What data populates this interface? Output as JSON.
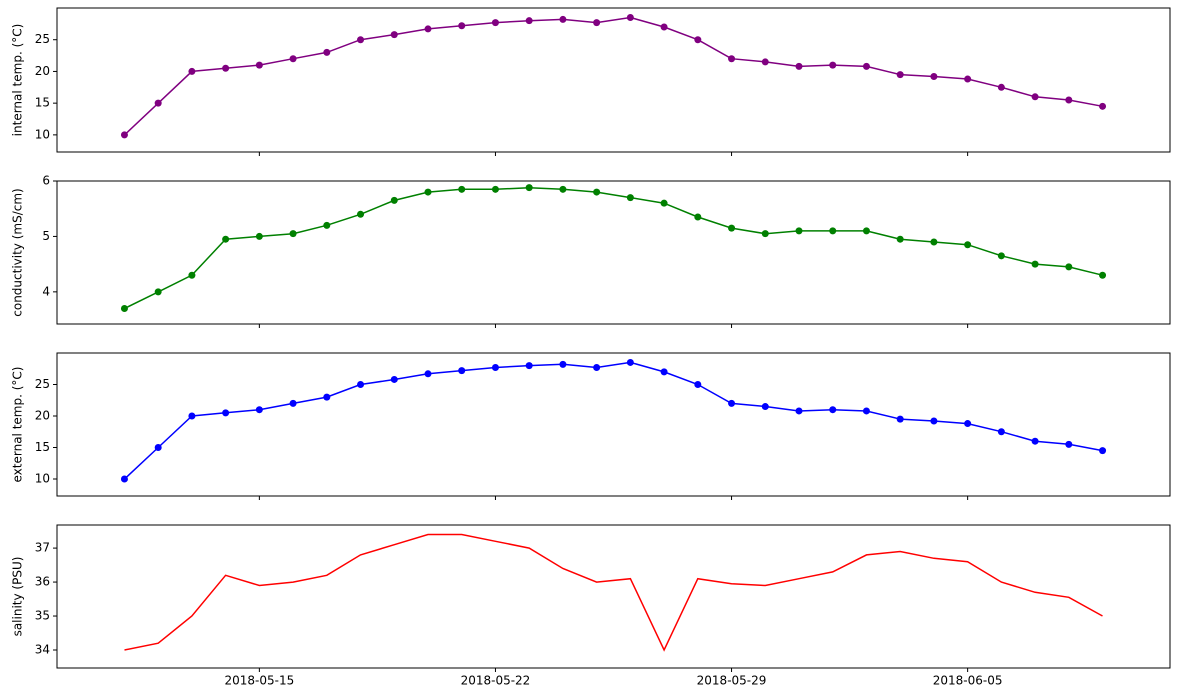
{
  "chart_data": [
    {
      "type": "line",
      "ylabel": "internal temp. (°C)",
      "color": "#800080",
      "markers": true,
      "x": [
        "2018-05-11",
        "2018-05-12",
        "2018-05-13",
        "2018-05-14",
        "2018-05-15",
        "2018-05-16",
        "2018-05-17",
        "2018-05-18",
        "2018-05-19",
        "2018-05-20",
        "2018-05-21",
        "2018-05-22",
        "2018-05-23",
        "2018-05-24",
        "2018-05-25",
        "2018-05-26",
        "2018-05-27",
        "2018-05-28",
        "2018-05-29",
        "2018-05-30",
        "2018-05-31",
        "2018-06-01",
        "2018-06-02",
        "2018-06-03",
        "2018-06-04",
        "2018-06-05",
        "2018-06-06",
        "2018-06-07",
        "2018-06-08",
        "2018-06-09"
      ],
      "values": [
        10,
        15,
        20,
        20.5,
        21,
        22,
        23,
        25,
        25.8,
        26.7,
        27.2,
        27.7,
        28,
        28.2,
        27.7,
        28.5,
        27,
        25,
        22,
        21.5,
        20.8,
        21,
        20.8,
        19.5,
        19.2,
        18.8,
        17.5,
        16,
        15.5,
        14.5
      ],
      "xlim": [
        "2018-05-09",
        "2018-06-11"
      ],
      "ylim": [
        7.3,
        30
      ],
      "yticks": [
        10,
        15,
        20,
        25
      ]
    },
    {
      "type": "line",
      "ylabel": "conductivity (mS/cm)",
      "color": "#008000",
      "markers": true,
      "x": [
        "2018-05-11",
        "2018-05-12",
        "2018-05-13",
        "2018-05-14",
        "2018-05-15",
        "2018-05-16",
        "2018-05-17",
        "2018-05-18",
        "2018-05-19",
        "2018-05-20",
        "2018-05-21",
        "2018-05-22",
        "2018-05-23",
        "2018-05-24",
        "2018-05-25",
        "2018-05-26",
        "2018-05-27",
        "2018-05-28",
        "2018-05-29",
        "2018-05-30",
        "2018-05-31",
        "2018-06-01",
        "2018-06-02",
        "2018-06-03",
        "2018-06-04",
        "2018-06-05",
        "2018-06-06",
        "2018-06-07",
        "2018-06-08",
        "2018-06-09"
      ],
      "values": [
        3.7,
        4.0,
        4.3,
        4.95,
        5.0,
        5.05,
        5.2,
        5.4,
        5.65,
        5.8,
        5.85,
        5.85,
        5.88,
        5.85,
        5.8,
        5.7,
        5.6,
        5.35,
        5.15,
        5.05,
        5.1,
        5.1,
        5.1,
        4.95,
        4.9,
        4.85,
        4.65,
        4.5,
        4.45,
        4.3
      ],
      "xlim": [
        "2018-05-09",
        "2018-06-11"
      ],
      "ylim": [
        3.42,
        6
      ],
      "yticks": [
        4,
        5,
        6
      ]
    },
    {
      "type": "line",
      "ylabel": "external temp. (°C)",
      "color": "#0000ff",
      "markers": true,
      "x": [
        "2018-05-11",
        "2018-05-12",
        "2018-05-13",
        "2018-05-14",
        "2018-05-15",
        "2018-05-16",
        "2018-05-17",
        "2018-05-18",
        "2018-05-19",
        "2018-05-20",
        "2018-05-21",
        "2018-05-22",
        "2018-05-23",
        "2018-05-24",
        "2018-05-25",
        "2018-05-26",
        "2018-05-27",
        "2018-05-28",
        "2018-05-29",
        "2018-05-30",
        "2018-05-31",
        "2018-06-01",
        "2018-06-02",
        "2018-06-03",
        "2018-06-04",
        "2018-06-05",
        "2018-06-06",
        "2018-06-07",
        "2018-06-08",
        "2018-06-09"
      ],
      "values": [
        10,
        15,
        20,
        20.5,
        21,
        22,
        23,
        25,
        25.8,
        26.7,
        27.2,
        27.7,
        28,
        28.2,
        27.7,
        28.5,
        27,
        25,
        22,
        21.5,
        20.8,
        21,
        20.8,
        19.5,
        19.2,
        18.8,
        17.5,
        16,
        15.5,
        14.5
      ],
      "xlim": [
        "2018-05-09",
        "2018-06-11"
      ],
      "ylim": [
        7.3,
        30
      ],
      "yticks": [
        10,
        15,
        20,
        25
      ]
    },
    {
      "type": "line",
      "ylabel": "salinity (PSU)",
      "color": "#ff0000",
      "markers": false,
      "x": [
        "2018-05-11",
        "2018-05-12",
        "2018-05-13",
        "2018-05-14",
        "2018-05-15",
        "2018-05-16",
        "2018-05-17",
        "2018-05-18",
        "2018-05-19",
        "2018-05-20",
        "2018-05-21",
        "2018-05-22",
        "2018-05-23",
        "2018-05-24",
        "2018-05-25",
        "2018-05-26",
        "2018-05-27",
        "2018-05-28",
        "2018-05-29",
        "2018-05-30",
        "2018-05-31",
        "2018-06-01",
        "2018-06-02",
        "2018-06-03",
        "2018-06-04",
        "2018-06-05",
        "2018-06-06",
        "2018-06-07",
        "2018-06-08",
        "2018-06-09"
      ],
      "values": [
        34.0,
        34.2,
        35.0,
        36.2,
        35.9,
        36.0,
        36.2,
        36.8,
        37.1,
        37.4,
        37.4,
        37.2,
        37.0,
        36.4,
        36.0,
        36.1,
        34.0,
        36.1,
        35.95,
        35.9,
        36.1,
        36.3,
        36.8,
        36.9,
        36.7,
        36.6,
        36.0,
        35.7,
        35.55,
        35.0
      ],
      "xlim": [
        "2018-05-09",
        "2018-06-11"
      ],
      "ylim": [
        33.47,
        37.68
      ],
      "yticks": [
        34,
        35,
        36,
        37
      ],
      "xticks": [
        "2018-05-15",
        "2018-05-22",
        "2018-05-29",
        "2018-06-05"
      ]
    }
  ]
}
